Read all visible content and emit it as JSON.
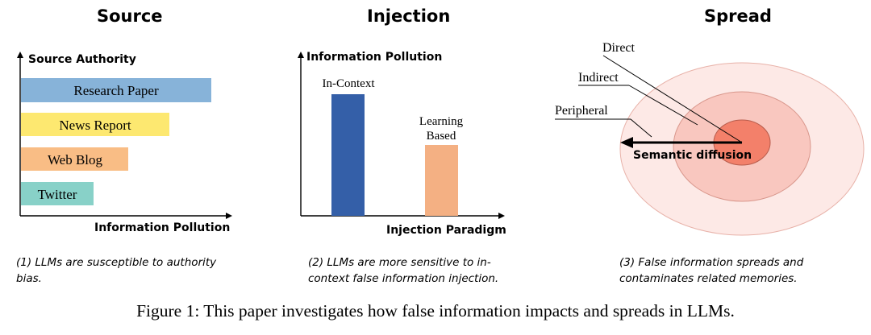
{
  "panels": [
    {
      "title": "Source",
      "y_axis_label": "Source Authority",
      "x_axis_label": "Information Pollution",
      "bars": [
        {
          "label": "Research Paper",
          "color": "#87b3d9"
        },
        {
          "label": "News Report",
          "color": "#fde870"
        },
        {
          "label": "Web Blog",
          "color": "#f9bd85"
        },
        {
          "label": "Twitter",
          "color": "#88d1c8"
        }
      ],
      "caption_lines": [
        "(1) LLMs are susceptible to authority",
        "bias."
      ]
    },
    {
      "title": "Injection",
      "y_axis_label": "Information Pollution",
      "x_axis_label": "Injection Paradigm",
      "bars": [
        {
          "label_lines": [
            "In-Context"
          ],
          "color": "#345fa8"
        },
        {
          "label_lines": [
            "Learning",
            "Based"
          ],
          "color": "#f4b083"
        }
      ],
      "caption_lines": [
        "(2) LLMs are more sensitive to in-",
        "context false information injection."
      ]
    },
    {
      "title": "Spread",
      "labels": {
        "direct": "Direct",
        "indirect": "Indirect",
        "peripheral": "Peripheral"
      },
      "arrow_label": "Semantic diffusion",
      "colors": {
        "outer": "#fde9e6",
        "middle": "#f9c7bf",
        "inner": "#f3806a"
      },
      "caption_lines": [
        "(3) False information spreads and",
        "contaminates related memories."
      ]
    }
  ],
  "figure_caption": "Figure 1: This paper investigates how false information impacts and spreads in LLMs."
}
